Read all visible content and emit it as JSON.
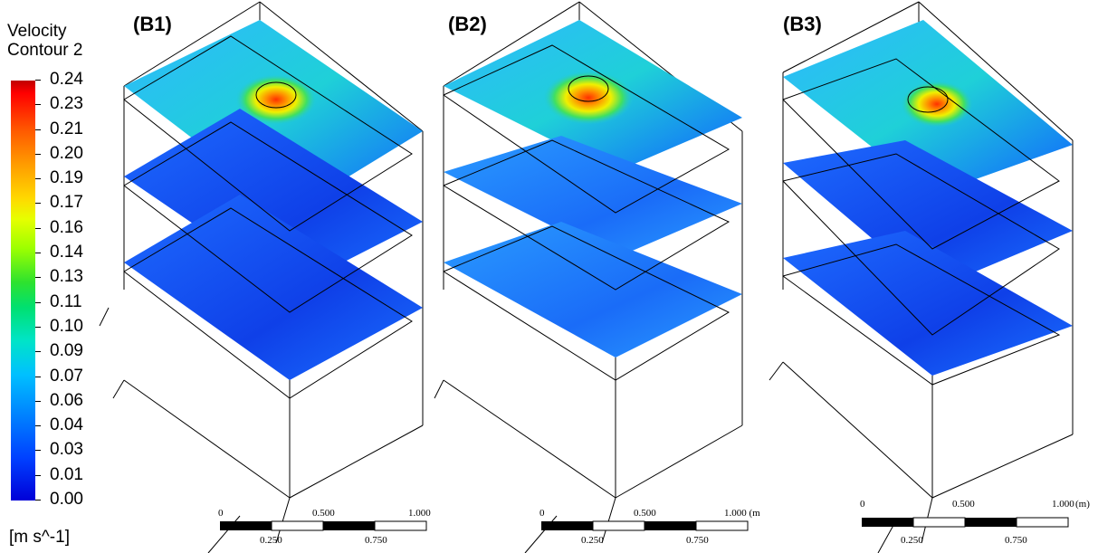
{
  "legend": {
    "title_line1": "Velocity",
    "title_line2": "Contour 2",
    "ticks": [
      "0.24",
      "0.23",
      "0.21",
      "0.20",
      "0.19",
      "0.17",
      "0.16",
      "0.14",
      "0.13",
      "0.11",
      "0.10",
      "0.09",
      "0.07",
      "0.06",
      "0.04",
      "0.03",
      "0.01",
      "0.00"
    ],
    "unit": "[m s^-1]"
  },
  "panels": [
    {
      "label": "(B1)",
      "scale": {
        "top": [
          "0",
          "0.500",
          "1.000"
        ],
        "bottom": [
          "0.250",
          "0.750"
        ],
        "unit": ""
      }
    },
    {
      "label": "(B2)",
      "scale": {
        "top": [
          "0",
          "0.500",
          "1.000 (m"
        ],
        "bottom": [
          "0.250",
          "0.750"
        ],
        "unit": ""
      }
    },
    {
      "label": "(B3)",
      "scale": {
        "top": [
          "0",
          "0.500",
          "1.000"
        ],
        "bottom": [
          "0.250",
          "0.750"
        ],
        "unit": "(m)"
      }
    }
  ]
}
